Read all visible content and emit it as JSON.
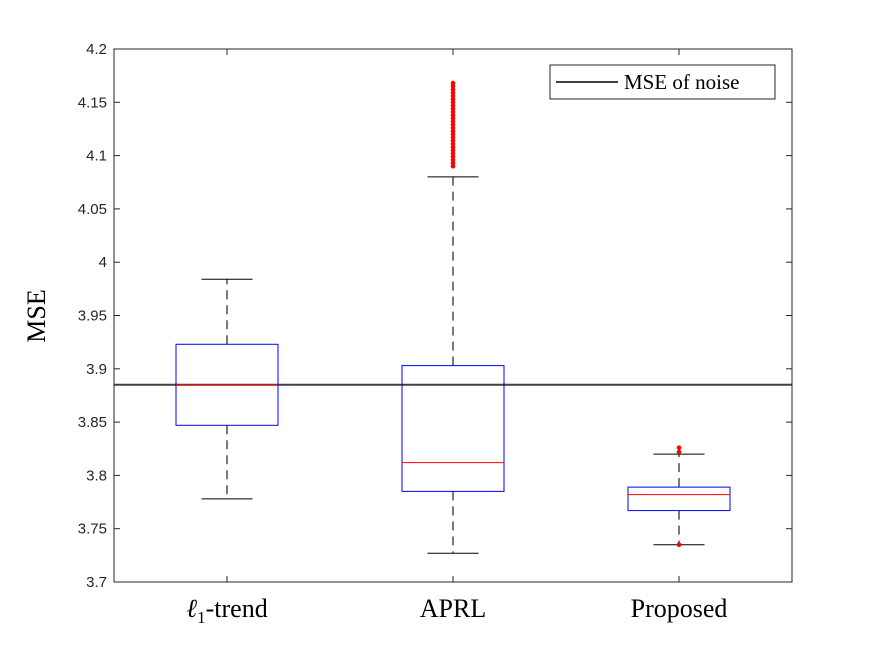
{
  "chart_data": {
    "type": "box",
    "categories": [
      "ℓ1-trend",
      "APRL",
      "Proposed"
    ],
    "ylabel": "MSE",
    "ylim": [
      3.7,
      4.2
    ],
    "yticks": [
      3.7,
      3.75,
      3.8,
      3.85,
      3.9,
      3.95,
      4,
      4.05,
      4.1,
      4.15,
      4.2
    ],
    "ytick_labels": [
      "3.7",
      "3.75",
      "3.8",
      "3.85",
      "3.9",
      "3.95",
      "4",
      "4.05",
      "4.1",
      "4.15",
      "4.2"
    ],
    "boxes": [
      {
        "whisker_low": 3.778,
        "q1": 3.847,
        "median": 3.885,
        "q3": 3.923,
        "whisker_high": 3.984,
        "outliers": []
      },
      {
        "whisker_low": 3.727,
        "q1": 3.785,
        "median": 3.812,
        "q3": 3.903,
        "whisker_high": 4.08,
        "outliers": [
          4.09,
          4.093,
          4.096,
          4.099,
          4.102,
          4.105,
          4.108,
          4.111,
          4.114,
          4.117,
          4.12,
          4.123,
          4.126,
          4.129,
          4.132,
          4.135,
          4.138,
          4.141,
          4.144,
          4.147,
          4.15,
          4.153,
          4.156,
          4.159,
          4.162,
          4.165,
          4.168
        ]
      },
      {
        "whisker_low": 3.735,
        "q1": 3.767,
        "median": 3.782,
        "q3": 3.789,
        "whisker_high": 3.82,
        "outliers": [
          3.735,
          3.822,
          3.826
        ]
      }
    ],
    "reference_line": {
      "label": "MSE of noise",
      "value": 3.885,
      "color": "#404040"
    },
    "legend_position": "top-right",
    "grid": false,
    "colors": {
      "box": "#0000ff",
      "median": "#ff0000",
      "whisker": "#4d4d4d",
      "outlier": "#ff0000",
      "axis": "#262626"
    }
  }
}
